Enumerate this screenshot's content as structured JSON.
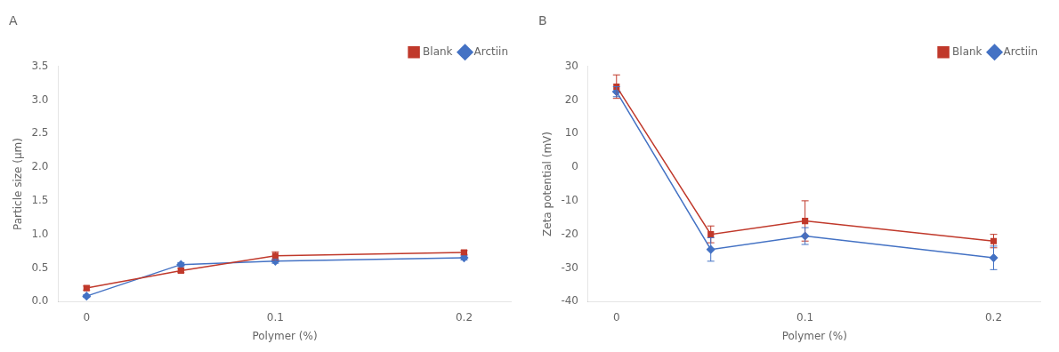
{
  "chart_data": [
    {
      "type": "line",
      "title": "A",
      "x": [
        0,
        0.05,
        0.1,
        0.2
      ],
      "series": [
        {
          "name": "Blank",
          "color": "#c0392b",
          "marker": "square",
          "values": [
            0.2,
            0.46,
            0.68,
            0.73
          ],
          "yerr": [
            0.03,
            0.03,
            0.06,
            0.03
          ]
        },
        {
          "name": "Arctiin",
          "color": "#4472c4",
          "marker": "diamond",
          "values": [
            0.08,
            0.55,
            0.6,
            0.65
          ],
          "yerr": [
            0.02,
            0.03,
            0.03,
            0.03
          ]
        }
      ],
      "x_label": "Polymer (%)",
      "y_label": "Particle size (μm)",
      "xlim": [
        -0.015,
        0.225
      ],
      "xticks": [
        0,
        {
          "value": 0.05,
          "label": null
        },
        0.1,
        0.2
      ],
      "ylim": [
        0,
        3.5
      ],
      "yticks": [
        {
          "value": 0,
          "label": "0.0"
        },
        0.5,
        {
          "value": 1.0,
          "label": "1.0"
        },
        1.5,
        {
          "value": 2.0,
          "label": "2.0"
        },
        2.5,
        {
          "value": 3.0,
          "label": "3.0"
        },
        3.5
      ],
      "grid": false,
      "legend": "upper right"
    },
    {
      "type": "line",
      "title": "B",
      "x": [
        0,
        0.05,
        0.1,
        0.2
      ],
      "series": [
        {
          "name": "Blank",
          "color": "#c0392b",
          "marker": "square",
          "values": [
            24.0,
            -20.0,
            -16.0,
            -22.0
          ],
          "yerr": [
            3.5,
            2.5,
            6.0,
            2.0
          ]
        },
        {
          "name": "Arctiin",
          "color": "#4472c4",
          "marker": "diamond",
          "values": [
            22.5,
            -24.5,
            -20.5,
            -27.0
          ],
          "yerr": [
            1.5,
            3.5,
            2.5,
            3.5
          ]
        }
      ],
      "x_label": "Polymer (%)",
      "y_label": "Zeta potential (mV)",
      "xlim": [
        -0.015,
        0.225
      ],
      "xticks": [
        0,
        {
          "value": 0.05,
          "label": null
        },
        0.1,
        0.2
      ],
      "ylim": [
        -40,
        30
      ],
      "yticks": [
        -40,
        -30,
        -20,
        -10,
        0,
        10,
        20,
        30
      ],
      "grid": false,
      "legend": "upper right"
    }
  ]
}
